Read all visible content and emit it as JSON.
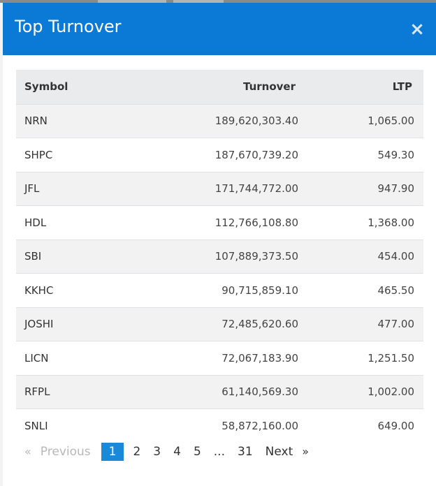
{
  "modal": {
    "title": "Top Turnover",
    "close_glyph": "×"
  },
  "table": {
    "headers": {
      "symbol": "Symbol",
      "turnover": "Turnover",
      "ltp": "LTP"
    },
    "rows": [
      {
        "symbol": "NRN",
        "turnover": "189,620,303.40",
        "ltp": "1,065.00"
      },
      {
        "symbol": "SHPC",
        "turnover": "187,670,739.20",
        "ltp": "549.30"
      },
      {
        "symbol": "JFL",
        "turnover": "171,744,772.00",
        "ltp": "947.90"
      },
      {
        "symbol": "HDL",
        "turnover": "112,766,108.80",
        "ltp": "1,368.00"
      },
      {
        "symbol": "SBI",
        "turnover": "107,889,373.50",
        "ltp": "454.00"
      },
      {
        "symbol": "KKHC",
        "turnover": "90,715,859.10",
        "ltp": "465.50"
      },
      {
        "symbol": "JOSHI",
        "turnover": "72,485,620.60",
        "ltp": "477.00"
      },
      {
        "symbol": "LICN",
        "turnover": "72,067,183.90",
        "ltp": "1,251.50"
      },
      {
        "symbol": "RFPL",
        "turnover": "61,140,569.30",
        "ltp": "1,002.00"
      },
      {
        "symbol": "SNLI",
        "turnover": "58,872,160.00",
        "ltp": "649.00"
      }
    ]
  },
  "pagination": {
    "prev_arrow": "«",
    "prev_label": "Previous",
    "pages": [
      "1",
      "2",
      "3",
      "4",
      "5"
    ],
    "active_page": "1",
    "ellipsis": "...",
    "last_page": "31",
    "next_label": "Next",
    "next_arrow": "»"
  },
  "colors": {
    "header_bg": "#0b7ad6",
    "active_page_bg": "#1a8ad8",
    "table_head_bg": "#e9ebed",
    "stripe_bg": "#f2f2f2"
  },
  "icons": {
    "close": "close-icon"
  }
}
